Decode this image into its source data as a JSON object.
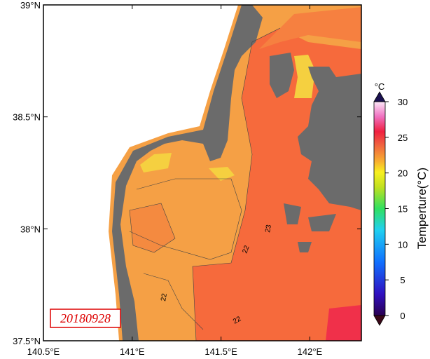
{
  "map": {
    "lat_lim": [
      37.5,
      39
    ],
    "lon_lim": [
      140.5,
      142.29
    ],
    "lat_ticks": [
      {
        "value": 39,
        "label": "39°N"
      },
      {
        "value": 38.5,
        "label": "38.5°N"
      },
      {
        "value": 38,
        "label": "38°N"
      },
      {
        "value": 37.5,
        "label": "37.5°N"
      }
    ],
    "lon_ticks": [
      {
        "value": 140.5,
        "label": "140.5°E"
      },
      {
        "value": 141,
        "label": "141°E"
      },
      {
        "value": 141.5,
        "label": "141.5°E"
      },
      {
        "value": 142,
        "label": "142°E"
      }
    ],
    "date": "20180928",
    "contour_labels": [
      "22",
      "23",
      "22",
      "22"
    ]
  },
  "colorbar": {
    "unit": "°C",
    "label": "Temperture(°C)",
    "lim": [
      0,
      30
    ],
    "ticks": [
      0,
      5,
      10,
      15,
      20,
      25,
      30
    ]
  }
}
